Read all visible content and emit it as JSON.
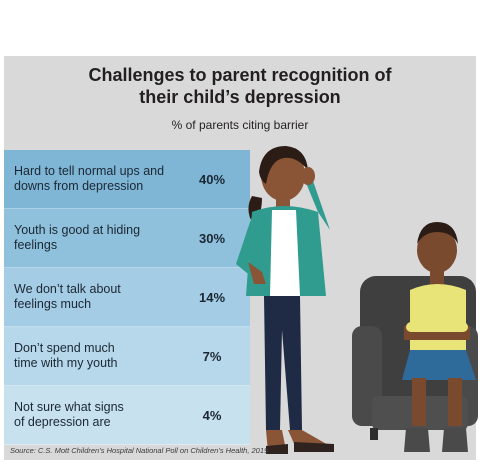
{
  "chart_data": {
    "type": "table",
    "title_line1": "Challenges to parent recognition of",
    "title_line2": "their child’s depression",
    "subtitle": "% of parents citing barrier",
    "rows": [
      {
        "label_line1": "Hard to tell normal ups and",
        "label_line2": "downs from depression",
        "value": 40,
        "value_label": "40%",
        "color": "#7fb6d6"
      },
      {
        "label_line1": "Youth is good at hiding",
        "label_line2": "feelings",
        "value": 30,
        "value_label": "30%",
        "color": "#8fc1dd"
      },
      {
        "label_line1": "We don’t talk about",
        "label_line2": "feelings much",
        "value": 14,
        "value_label": "14%",
        "color": "#a4cde5"
      },
      {
        "label_line1": "Don’t spend much",
        "label_line2": "time with my youth",
        "value": 7,
        "value_label": "7%",
        "color": "#b7d8eb"
      },
      {
        "label_line1": "Not sure what signs",
        "label_line2": "of depression are",
        "value": 4,
        "value_label": "4%",
        "color": "#c8e1ef"
      }
    ],
    "source": "Source: C.S. Mott Children’s Hospital National Poll on Children’s Health, 2019"
  }
}
